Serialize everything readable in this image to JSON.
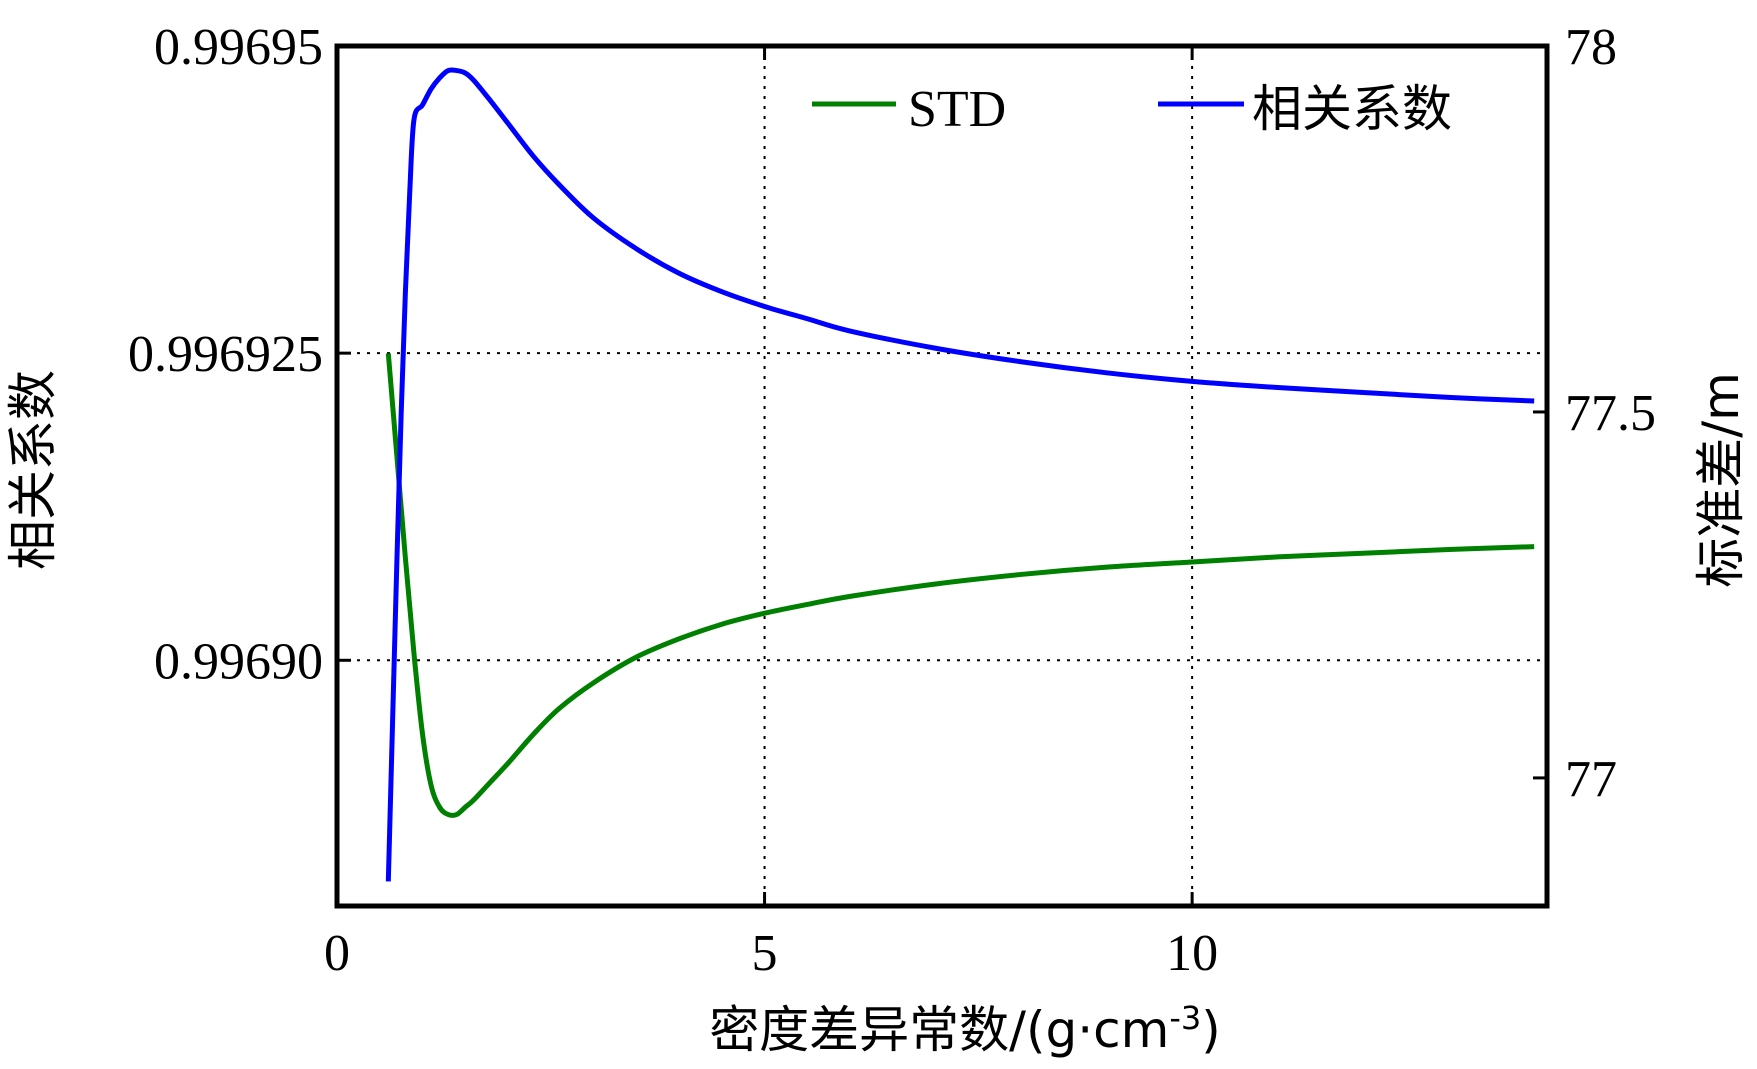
{
  "chart_data": {
    "type": "line",
    "xlabel": "密度差异常数/(g·cm",
    "xlabel_sup": "-3",
    "xlabel_close": ")",
    "ylabel_left": "相关系数",
    "ylabel_right": "标准差/m",
    "xlim": [
      0,
      14.15
    ],
    "ylim_left": [
      0.99688,
      0.99695
    ],
    "ylim_right": [
      76.825,
      78
    ],
    "x_ticks": [
      0,
      5,
      10
    ],
    "x_tick_labels": [
      "0",
      "5",
      "10"
    ],
    "y_left_ticks": [
      0.9969,
      0.996925,
      0.99695
    ],
    "y_left_tick_labels": [
      "0.99690",
      "0.996925",
      "0.99695"
    ],
    "y_right_ticks": [
      77,
      77.5,
      78
    ],
    "y_right_tick_labels": [
      "77",
      "77.5",
      "78"
    ],
    "grid": true,
    "legend_position": "top-right",
    "colors": {
      "std": "#008000",
      "corr": "#0000ff"
    },
    "series": [
      {
        "name": "STD",
        "axis": "right",
        "x": [
          0.6,
          0.7,
          0.8,
          0.9,
          1.0,
          1.1,
          1.2,
          1.3,
          1.4,
          1.5,
          1.6,
          1.8,
          2.0,
          2.3,
          2.6,
          3.0,
          3.5,
          4.0,
          4.5,
          5.0,
          5.5,
          6.0,
          7.0,
          8.0,
          9.0,
          10.0,
          11.0,
          12.0,
          13.0,
          14.0
        ],
        "y": [
          77.58,
          77.44,
          77.3,
          77.17,
          77.06,
          76.99,
          76.96,
          76.95,
          76.95,
          76.96,
          76.97,
          76.995,
          77.02,
          77.06,
          77.095,
          77.13,
          77.165,
          77.19,
          77.21,
          77.225,
          77.237,
          77.248,
          77.265,
          77.278,
          77.288,
          77.295,
          77.302,
          77.307,
          77.312,
          77.316
        ]
      },
      {
        "name": "相关系数",
        "axis": "left",
        "x": [
          0.6,
          0.65,
          0.7,
          0.75,
          0.8,
          0.85,
          0.9,
          1.0,
          1.1,
          1.2,
          1.3,
          1.4,
          1.5,
          1.6,
          1.8,
          2.0,
          2.3,
          2.6,
          3.0,
          3.5,
          4.0,
          4.5,
          5.0,
          5.5,
          6.0,
          7.0,
          8.0,
          9.0,
          10.0,
          11.0,
          12.0,
          13.0,
          14.0
        ],
        "y": [
          0.996882,
          0.996895,
          0.996908,
          0.99692,
          0.99693,
          0.996938,
          0.996944,
          0.9969452,
          0.9969465,
          0.9969474,
          0.996948,
          0.996948,
          0.9969478,
          0.9969472,
          0.9969455,
          0.9969437,
          0.996941,
          0.9969387,
          0.996936,
          0.9969335,
          0.9969315,
          0.99693,
          0.9969288,
          0.9969278,
          0.9969268,
          0.9969254,
          0.9969243,
          0.9969234,
          0.9969227,
          0.9969222,
          0.9969218,
          0.9969214,
          0.9969211
        ]
      }
    ]
  }
}
